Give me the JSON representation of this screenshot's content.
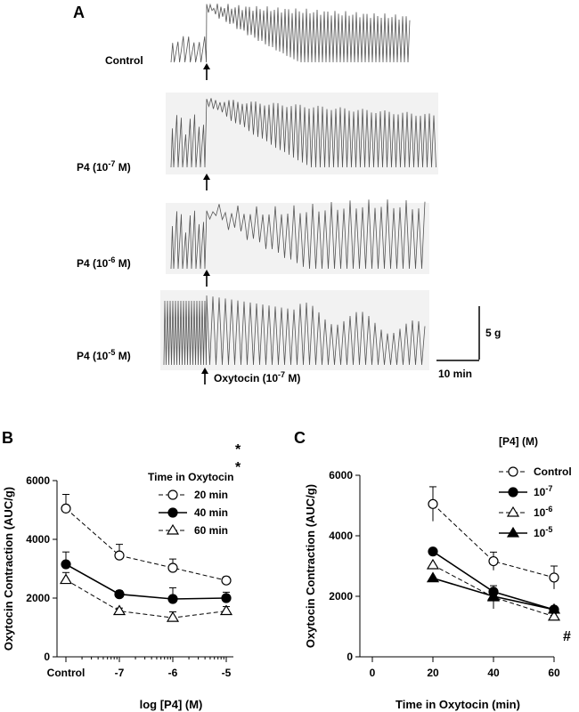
{
  "panel_a": {
    "letter": "A",
    "traces": [
      {
        "label_main": "Control",
        "label_exp": "",
        "label_tail": ""
      },
      {
        "label_main": "P4 (10",
        "label_exp": "-7",
        "label_tail": " M)"
      },
      {
        "label_main": "P4 (10",
        "label_exp": "-6",
        "label_tail": " M)"
      },
      {
        "label_main": "P4 (10",
        "label_exp": "-5",
        "label_tail": " M)"
      }
    ],
    "oxytocin_main": "Oxytocin (10",
    "oxytocin_exp": "-7",
    "oxytocin_tail": " M)",
    "scale_force": "5 g",
    "scale_time": "10 min"
  },
  "chart_data": [
    {
      "panel": "B",
      "type": "line",
      "xlabel": "log [P4] (M)",
      "ylabel": "Oxytocin Contraction (AUC/g)",
      "categories": [
        "Control",
        "-7",
        "-6",
        "-5"
      ],
      "ylim": [
        0,
        6000
      ],
      "yticks": [
        0,
        2000,
        4000,
        6000
      ],
      "legend_title": "Time in Oxytocin",
      "legend_position": "top-right",
      "series": [
        {
          "name": "20 min",
          "values": [
            5050,
            3450,
            3030,
            2600
          ],
          "errors": [
            480,
            380,
            300,
            120
          ],
          "marker": "circle-open",
          "dash": true
        },
        {
          "name": "40 min",
          "values": [
            3150,
            2130,
            1970,
            2000
          ],
          "errors": [
            420,
            120,
            380,
            200
          ],
          "marker": "circle-filled",
          "dash": false
        },
        {
          "name": "60 min",
          "values": [
            2620,
            1560,
            1330,
            1560
          ],
          "errors": [
            250,
            100,
            200,
            150
          ],
          "marker": "triangle-open",
          "dash": true
        }
      ],
      "annotations": [
        "*",
        "*"
      ]
    },
    {
      "panel": "C",
      "type": "line",
      "xlabel": "Time in Oxytocin (min)",
      "ylabel": "Oxytocin Contraction (AUC/g)",
      "x": [
        20,
        40,
        60
      ],
      "xlim": [
        0,
        60
      ],
      "xticks": [
        0,
        20,
        40,
        60
      ],
      "ylim": [
        0,
        6000
      ],
      "yticks": [
        0,
        2000,
        4000,
        6000
      ],
      "legend_title": "[P4] (M)",
      "legend_position": "top-right",
      "series": [
        {
          "name": "Control",
          "name_main": "Control",
          "name_exp": "",
          "values": [
            5050,
            3160,
            2620
          ],
          "errors": [
            570,
            300,
            380
          ],
          "marker": "circle-open",
          "dash": true
        },
        {
          "name": "10^-7",
          "name_main": "10",
          "name_exp": "-7",
          "values": [
            3480,
            2150,
            1560
          ],
          "errors": [
            0,
            0,
            0
          ],
          "marker": "circle-filled",
          "dash": false
        },
        {
          "name": "10^-6",
          "name_main": "10",
          "name_exp": "-6",
          "values": [
            3030,
            1970,
            1330
          ],
          "errors": [
            0,
            380,
            0
          ],
          "marker": "triangle-open",
          "dash": true
        },
        {
          "name": "10^-5",
          "name_main": "10",
          "name_exp": "-5",
          "values": [
            2600,
            2000,
            1560
          ],
          "errors": [
            0,
            0,
            0
          ],
          "marker": "triangle-filled",
          "dash": false
        }
      ],
      "annotations": [
        "#"
      ]
    }
  ]
}
